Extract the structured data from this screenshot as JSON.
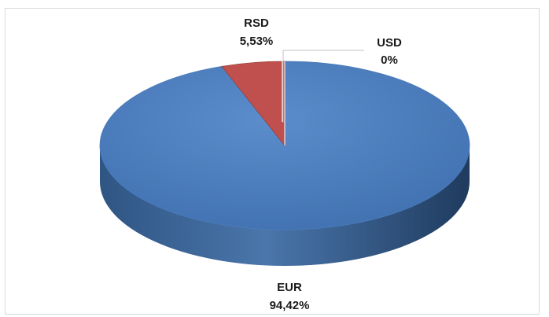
{
  "chart_data": {
    "type": "pie",
    "style": "3d",
    "slices": [
      {
        "category": "EUR",
        "label": "94,42%",
        "value": 94.42,
        "color": "#4f81bd"
      },
      {
        "category": "RSD",
        "label": "5,53%",
        "value": 5.53,
        "color": "#c0504d"
      },
      {
        "category": "USD",
        "label": "0%",
        "value": 0.0,
        "color": "#9bbb59"
      }
    ],
    "legend": "none",
    "title": ""
  }
}
